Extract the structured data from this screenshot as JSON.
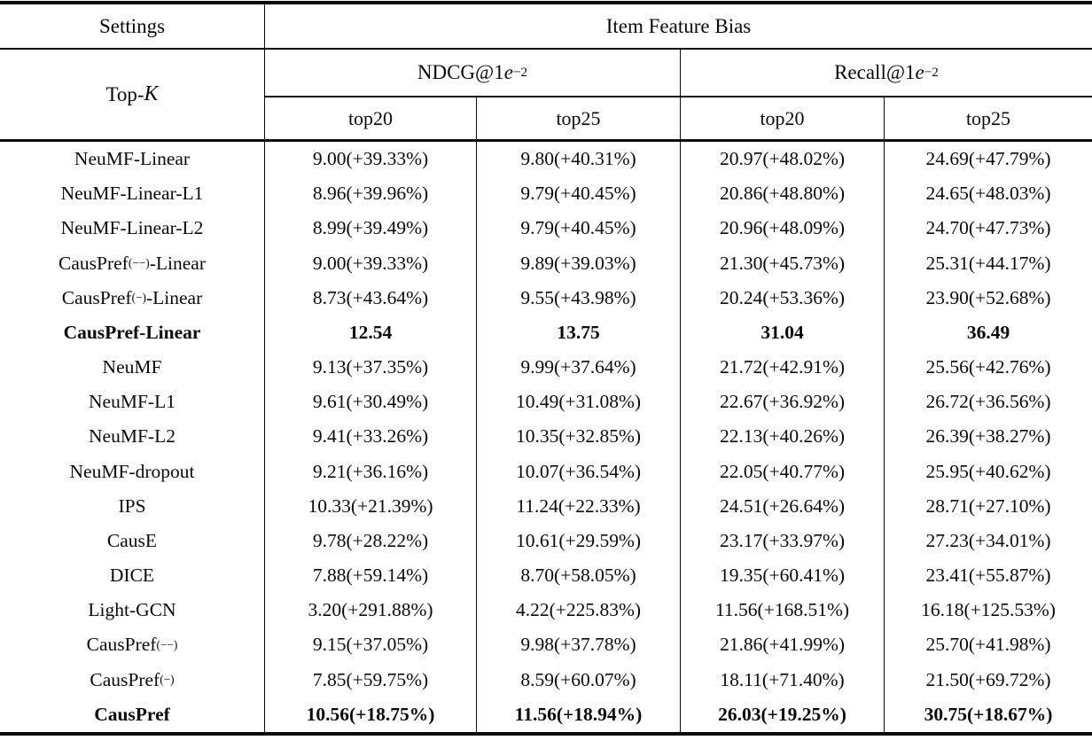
{
  "table": {
    "settings_label": "Settings",
    "group_header": "Item Feature Bias",
    "topk": {
      "prefix": "Top-",
      "k": "K"
    },
    "metric_groups": [
      {
        "prefix": "NDCG@1",
        "e": "e",
        "sup": "−2"
      },
      {
        "prefix": "Recall@1",
        "e": "e",
        "sup": "−2"
      }
    ],
    "subheaders": [
      "top20",
      "top25",
      "top20",
      "top25"
    ],
    "rows": [
      {
        "method": "NeuMF-Linear",
        "values": [
          "9.00(+39.33%)",
          "9.80(+40.31%)",
          "20.97(+48.02%)",
          "24.69(+47.79%)"
        ]
      },
      {
        "method": "NeuMF-Linear-L1",
        "values": [
          "8.96(+39.96%)",
          "9.79(+40.45%)",
          "20.86(+48.80%)",
          "24.65(+48.03%)"
        ]
      },
      {
        "method": "NeuMF-Linear-L2",
        "values": [
          "8.99(+39.49%)",
          "9.79(+40.45%)",
          "20.96(+48.09%)",
          "24.70(+47.73%)"
        ]
      },
      {
        "method": "CausPref",
        "method_sup": "(−−)",
        "method_suffix": "-Linear",
        "values": [
          "9.00(+39.33%)",
          "9.89(+39.03%)",
          "21.30(+45.73%)",
          "25.31(+44.17%)"
        ]
      },
      {
        "method": "CausPref",
        "method_sup": "(−)",
        "method_suffix": "-Linear",
        "values": [
          "8.73(+43.64%)",
          "9.55(+43.98%)",
          "20.24(+53.36%)",
          "23.90(+52.68%)"
        ]
      },
      {
        "method": "CausPref-Linear",
        "bold": true,
        "values": [
          "12.54",
          "13.75",
          "31.04",
          "36.49"
        ]
      },
      {
        "method": "NeuMF",
        "values": [
          "9.13(+37.35%)",
          "9.99(+37.64%)",
          "21.72(+42.91%)",
          "25.56(+42.76%)"
        ]
      },
      {
        "method": "NeuMF-L1",
        "values": [
          "9.61(+30.49%)",
          "10.49(+31.08%)",
          "22.67(+36.92%)",
          "26.72(+36.56%)"
        ]
      },
      {
        "method": "NeuMF-L2",
        "values": [
          "9.41(+33.26%)",
          "10.35(+32.85%)",
          "22.13(+40.26%)",
          "26.39(+38.27%)"
        ]
      },
      {
        "method": "NeuMF-dropout",
        "values": [
          "9.21(+36.16%)",
          "10.07(+36.54%)",
          "22.05(+40.77%)",
          "25.95(+40.62%)"
        ]
      },
      {
        "method": "IPS",
        "values": [
          "10.33(+21.39%)",
          "11.24(+22.33%)",
          "24.51(+26.64%)",
          "28.71(+27.10%)"
        ]
      },
      {
        "method": "CausE",
        "values": [
          "9.78(+28.22%)",
          "10.61(+29.59%)",
          "23.17(+33.97%)",
          "27.23(+34.01%)"
        ]
      },
      {
        "method": "DICE",
        "values": [
          "7.88(+59.14%)",
          "8.70(+58.05%)",
          "19.35(+60.41%)",
          "23.41(+55.87%)"
        ]
      },
      {
        "method": "Light-GCN",
        "values": [
          "3.20(+291.88%)",
          "4.22(+225.83%)",
          "11.56(+168.51%)",
          "16.18(+125.53%)"
        ]
      },
      {
        "method": "CausPref",
        "method_sup": "(−−)",
        "values": [
          "9.15(+37.05%)",
          "9.98(+37.78%)",
          "21.86(+41.99%)",
          "25.70(+41.98%)"
        ]
      },
      {
        "method": "CausPref",
        "method_sup": "(−)",
        "values": [
          "7.85(+59.75%)",
          "8.59(+60.07%)",
          "18.11(+71.40%)",
          "21.50(+69.72%)"
        ]
      },
      {
        "method": "CausPref",
        "bold": true,
        "values": [
          "10.56(+18.75%)",
          "11.56(+18.94%)",
          "26.03(+19.25%)",
          "30.75(+18.67%)"
        ]
      }
    ]
  }
}
